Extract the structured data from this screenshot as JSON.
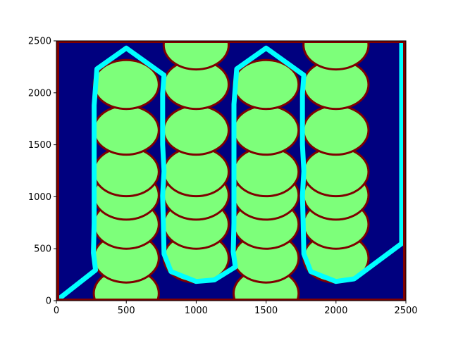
{
  "chart_data": {
    "type": "heatmap",
    "title": "",
    "xlabel": "",
    "ylabel": "",
    "xlim": [
      0,
      2500
    ],
    "ylim": [
      0,
      2500
    ],
    "x_ticks": [
      "0",
      "500",
      "1000",
      "1500",
      "2000",
      "2500"
    ],
    "y_ticks": [
      "0",
      "500",
      "1000",
      "1500",
      "2000",
      "2500"
    ],
    "x_tick_values": [
      0,
      500,
      1000,
      1500,
      2000,
      2500
    ],
    "y_tick_values": [
      0,
      500,
      1000,
      1500,
      2000,
      2500
    ],
    "grid": false,
    "legend": "none",
    "colors": {
      "background": "#00007f",
      "obstacle_border": "#7f0000",
      "obstacle": "#7dff7a",
      "path": "#00ffff"
    },
    "circle_radius": 225,
    "obstacles": [
      {
        "x": 500,
        "y": 70
      },
      {
        "x": 1500,
        "y": 70
      },
      {
        "x": 500,
        "y": 410
      },
      {
        "x": 1000,
        "y": 410
      },
      {
        "x": 1500,
        "y": 410
      },
      {
        "x": 2000,
        "y": 410
      },
      {
        "x": 500,
        "y": 735
      },
      {
        "x": 1000,
        "y": 735
      },
      {
        "x": 1500,
        "y": 735
      },
      {
        "x": 2000,
        "y": 735
      },
      {
        "x": 500,
        "y": 1015
      },
      {
        "x": 1000,
        "y": 1015
      },
      {
        "x": 1500,
        "y": 1015
      },
      {
        "x": 2000,
        "y": 1015
      },
      {
        "x": 500,
        "y": 1240
      },
      {
        "x": 1000,
        "y": 1240
      },
      {
        "x": 1500,
        "y": 1240
      },
      {
        "x": 2000,
        "y": 1240
      },
      {
        "x": 500,
        "y": 1640
      },
      {
        "x": 1000,
        "y": 1640
      },
      {
        "x": 1500,
        "y": 1640
      },
      {
        "x": 2000,
        "y": 1640
      },
      {
        "x": 500,
        "y": 2080
      },
      {
        "x": 1000,
        "y": 2080
      },
      {
        "x": 1500,
        "y": 2080
      },
      {
        "x": 2000,
        "y": 2080
      },
      {
        "x": 1000,
        "y": 2460
      },
      {
        "x": 2000,
        "y": 2460
      }
    ],
    "path": [
      {
        "x": 15,
        "y": 15
      },
      {
        "x": 280,
        "y": 295
      },
      {
        "x": 265,
        "y": 460
      },
      {
        "x": 270,
        "y": 750
      },
      {
        "x": 270,
        "y": 1010
      },
      {
        "x": 270,
        "y": 1265
      },
      {
        "x": 270,
        "y": 1500
      },
      {
        "x": 270,
        "y": 1880
      },
      {
        "x": 290,
        "y": 2230
      },
      {
        "x": 500,
        "y": 2430
      },
      {
        "x": 770,
        "y": 2170
      },
      {
        "x": 760,
        "y": 1990
      },
      {
        "x": 760,
        "y": 1500
      },
      {
        "x": 770,
        "y": 1245
      },
      {
        "x": 760,
        "y": 1010
      },
      {
        "x": 765,
        "y": 760
      },
      {
        "x": 770,
        "y": 450
      },
      {
        "x": 820,
        "y": 280
      },
      {
        "x": 1000,
        "y": 185
      },
      {
        "x": 1130,
        "y": 200
      },
      {
        "x": 1280,
        "y": 325
      },
      {
        "x": 1265,
        "y": 470
      },
      {
        "x": 1270,
        "y": 750
      },
      {
        "x": 1270,
        "y": 1010
      },
      {
        "x": 1270,
        "y": 1265
      },
      {
        "x": 1270,
        "y": 1500
      },
      {
        "x": 1270,
        "y": 1890
      },
      {
        "x": 1290,
        "y": 2230
      },
      {
        "x": 1500,
        "y": 2430
      },
      {
        "x": 1770,
        "y": 2170
      },
      {
        "x": 1760,
        "y": 1990
      },
      {
        "x": 1760,
        "y": 1500
      },
      {
        "x": 1770,
        "y": 1245
      },
      {
        "x": 1760,
        "y": 1010
      },
      {
        "x": 1765,
        "y": 760
      },
      {
        "x": 1770,
        "y": 450
      },
      {
        "x": 1820,
        "y": 280
      },
      {
        "x": 2000,
        "y": 185
      },
      {
        "x": 2130,
        "y": 210
      },
      {
        "x": 2470,
        "y": 550
      },
      {
        "x": 2470,
        "y": 2480
      }
    ]
  }
}
